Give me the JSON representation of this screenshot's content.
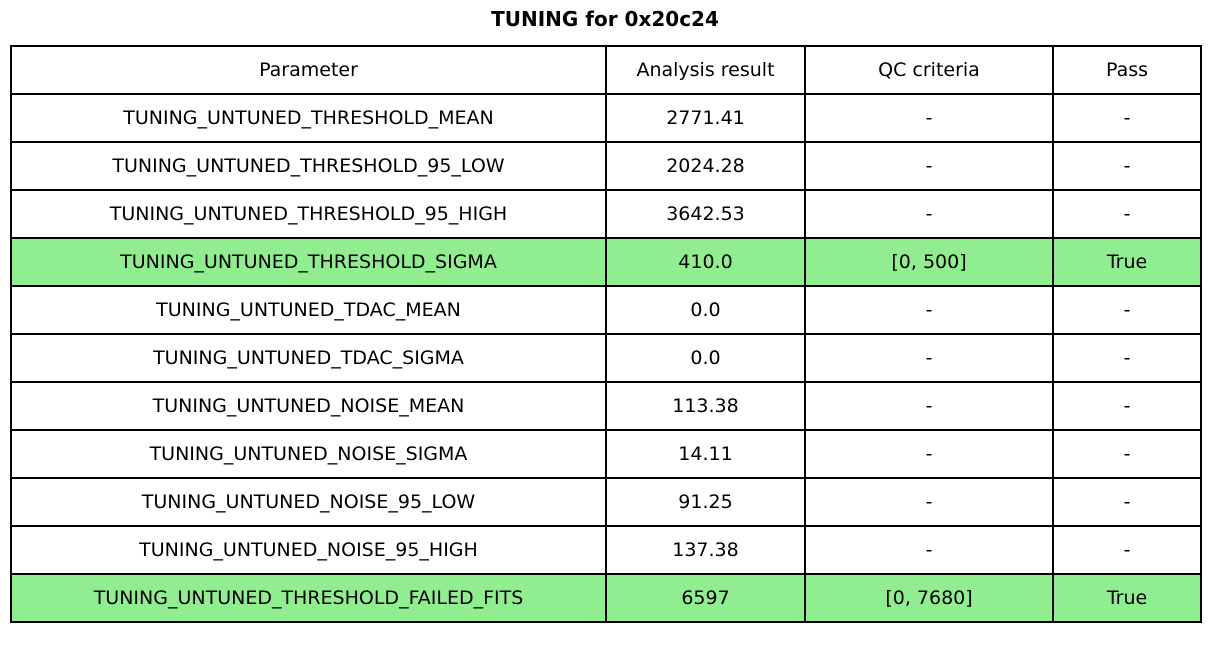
{
  "page_title": "TUNING for 0x20c24",
  "colors": {
    "highlight_green": "#90EE90",
    "border": "#000000",
    "background": "#ffffff",
    "text": "#000000"
  },
  "chart_data": {
    "type": "table",
    "title": "TUNING for 0x20c24",
    "columns": [
      "Parameter",
      "Analysis result",
      "QC criteria",
      "Pass"
    ],
    "rows": [
      {
        "parameter": "TUNING_UNTUNED_THRESHOLD_MEAN",
        "analysis_result": "2771.41",
        "qc_criteria": "-",
        "pass": "-",
        "highlight": false
      },
      {
        "parameter": "TUNING_UNTUNED_THRESHOLD_95_LOW",
        "analysis_result": "2024.28",
        "qc_criteria": "-",
        "pass": "-",
        "highlight": false
      },
      {
        "parameter": "TUNING_UNTUNED_THRESHOLD_95_HIGH",
        "analysis_result": "3642.53",
        "qc_criteria": "-",
        "pass": "-",
        "highlight": false
      },
      {
        "parameter": "TUNING_UNTUNED_THRESHOLD_SIGMA",
        "analysis_result": "410.0",
        "qc_criteria": "[0, 500]",
        "pass": "True",
        "highlight": true
      },
      {
        "parameter": "TUNING_UNTUNED_TDAC_MEAN",
        "analysis_result": "0.0",
        "qc_criteria": "-",
        "pass": "-",
        "highlight": false
      },
      {
        "parameter": "TUNING_UNTUNED_TDAC_SIGMA",
        "analysis_result": "0.0",
        "qc_criteria": "-",
        "pass": "-",
        "highlight": false
      },
      {
        "parameter": "TUNING_UNTUNED_NOISE_MEAN",
        "analysis_result": "113.38",
        "qc_criteria": "-",
        "pass": "-",
        "highlight": false
      },
      {
        "parameter": "TUNING_UNTUNED_NOISE_SIGMA",
        "analysis_result": "14.11",
        "qc_criteria": "-",
        "pass": "-",
        "highlight": false
      },
      {
        "parameter": "TUNING_UNTUNED_NOISE_95_LOW",
        "analysis_result": "91.25",
        "qc_criteria": "-",
        "pass": "-",
        "highlight": false
      },
      {
        "parameter": "TUNING_UNTUNED_NOISE_95_HIGH",
        "analysis_result": "137.38",
        "qc_criteria": "-",
        "pass": "-",
        "highlight": false
      },
      {
        "parameter": "TUNING_UNTUNED_THRESHOLD_FAILED_FITS",
        "analysis_result": "6597",
        "qc_criteria": "[0, 7680]",
        "pass": "True",
        "highlight": true
      }
    ],
    "highlighted_row_indices": [
      3,
      10
    ],
    "highlight_color": "#90EE90",
    "legend_position": "none",
    "grid": true
  }
}
